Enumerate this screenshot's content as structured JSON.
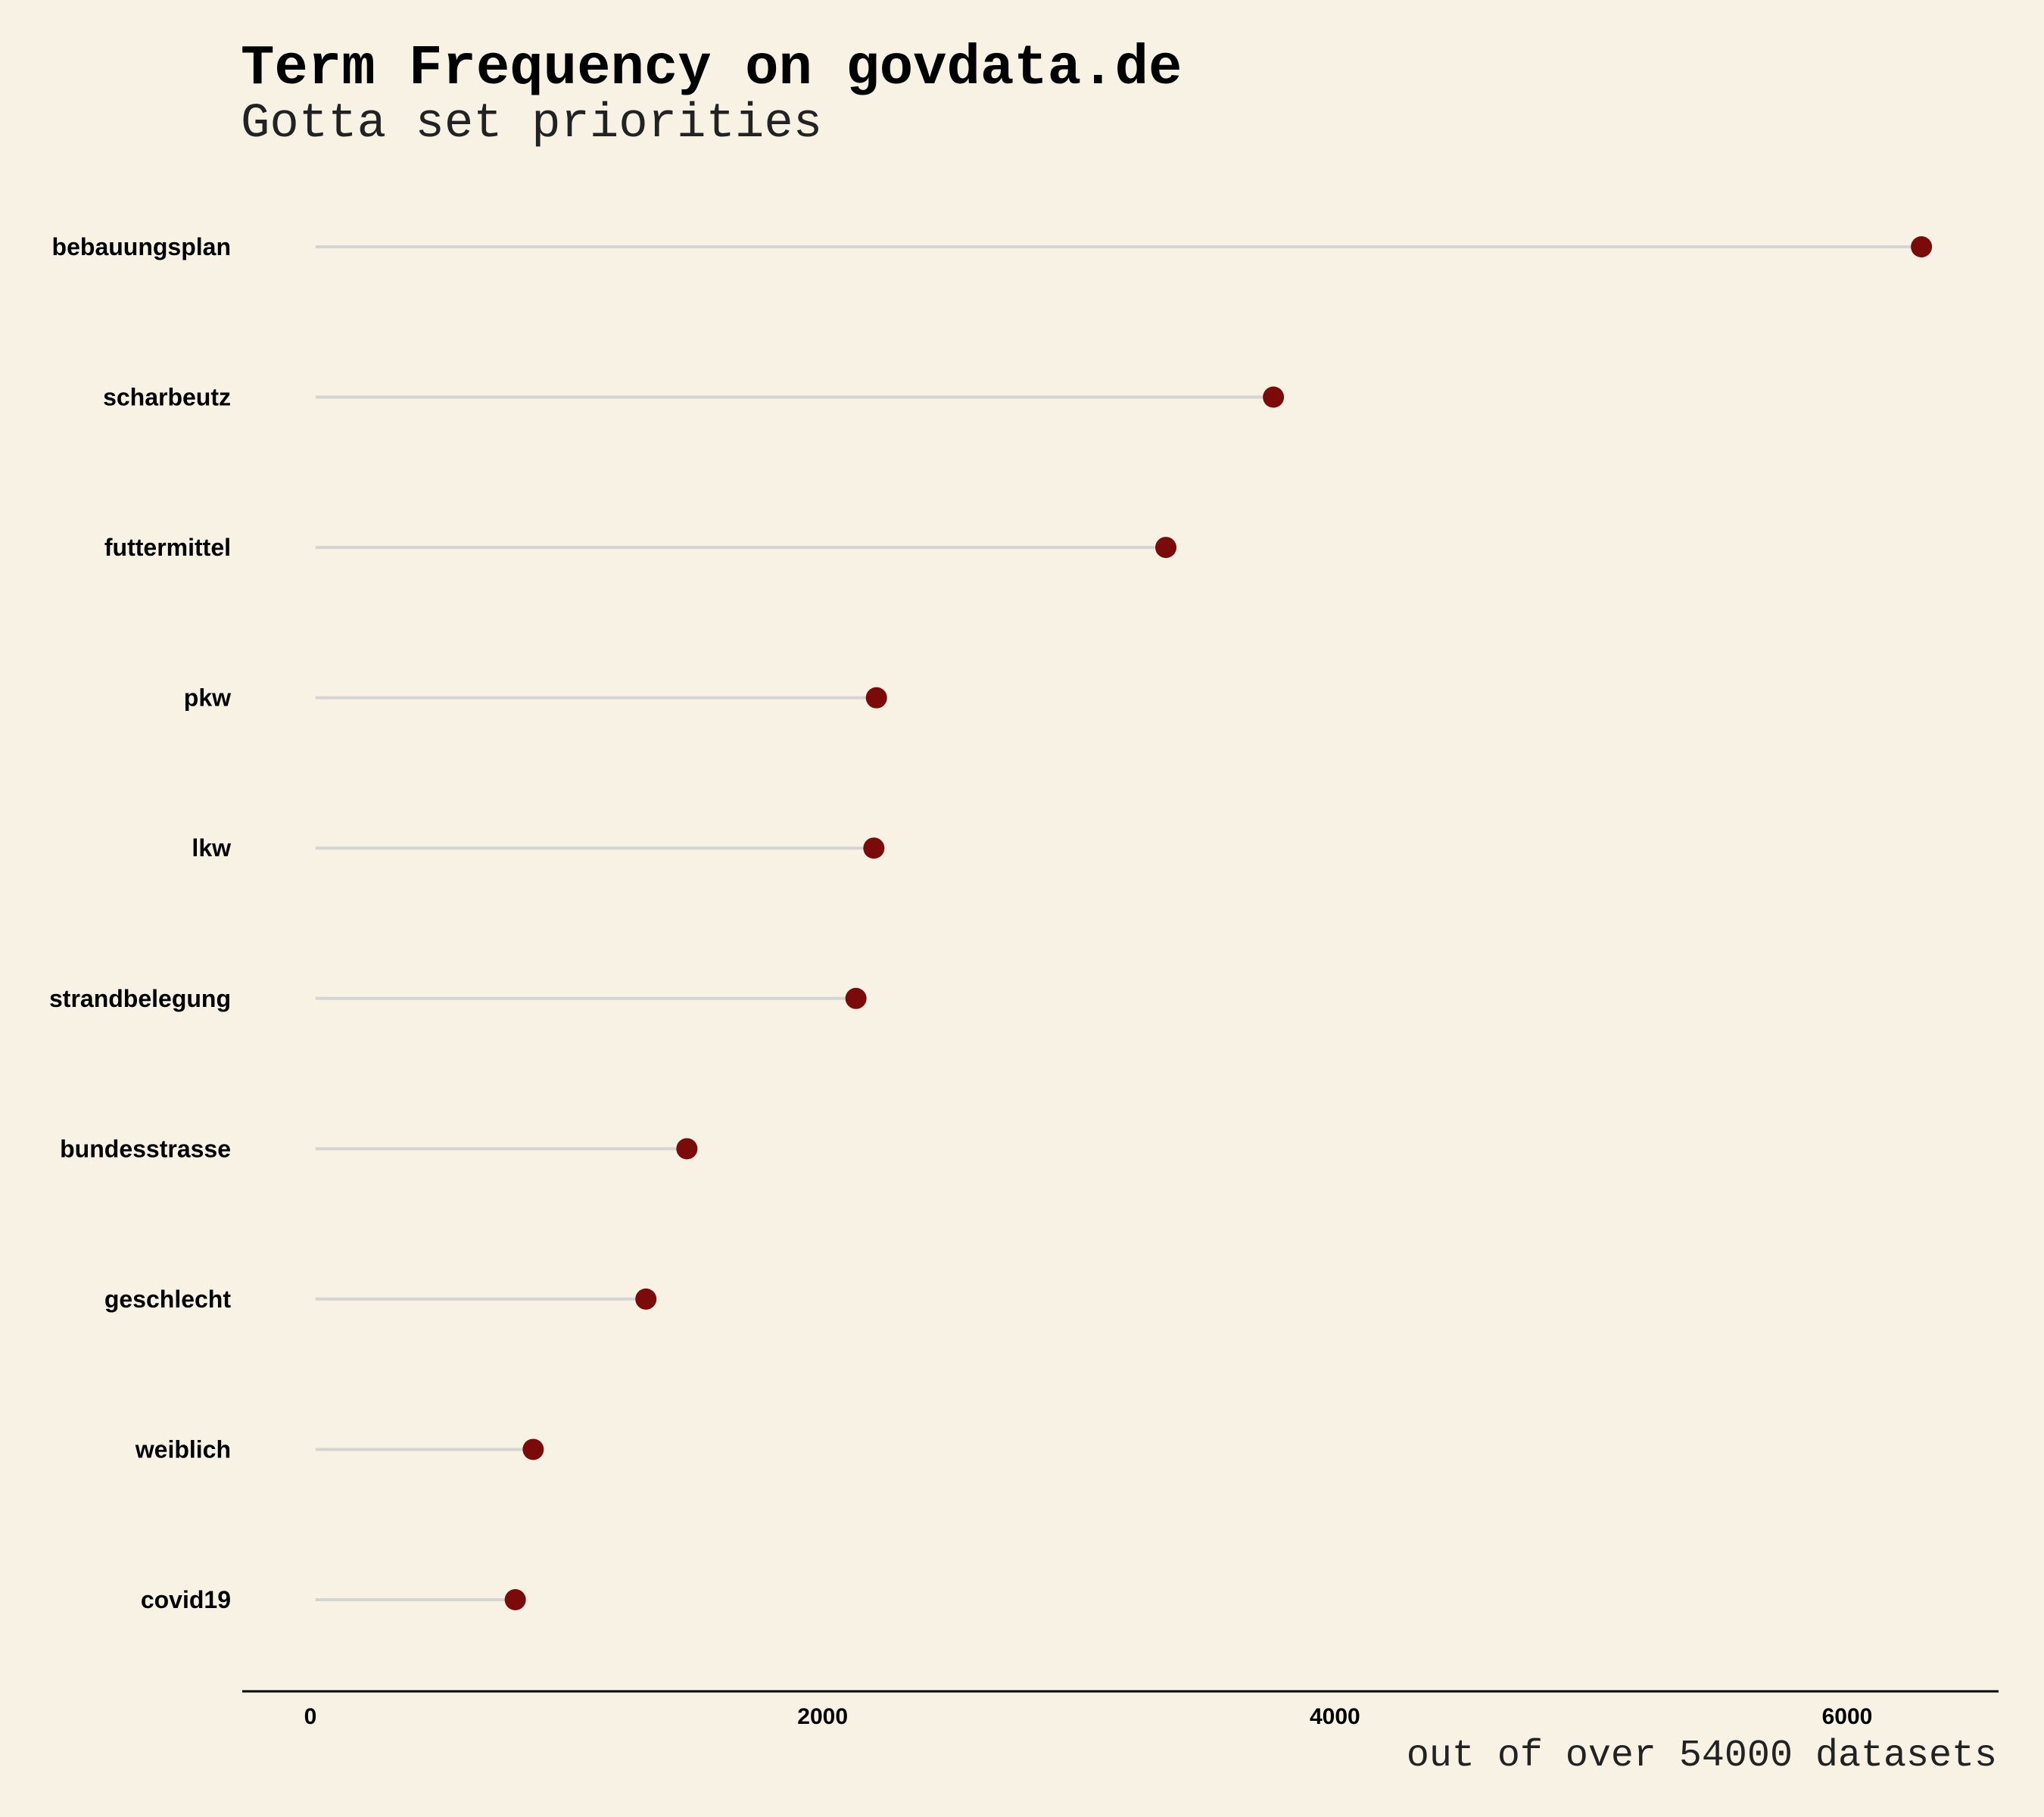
{
  "chart_data": {
    "type": "lollipop",
    "title": "Term Frequency on govdata.de",
    "subtitle": "Gotta set priorities",
    "xlabel": "out of over 54000 datasets",
    "ylabel": "",
    "categories": [
      "bebauungsplan",
      "scharbeutz",
      "futtermittel",
      "pkw",
      "lkw",
      "strandbelegung",
      "bundesstrasse",
      "geschlecht",
      "weiblich",
      "covid19"
    ],
    "values": [
      6290,
      3760,
      3340,
      2210,
      2200,
      2130,
      1470,
      1310,
      870,
      800
    ],
    "x_ticks": [
      "0",
      "2000",
      "4000",
      "6000"
    ],
    "x_tick_values": [
      0,
      2000,
      4000,
      6000
    ],
    "xlim": [
      -270,
      6600
    ],
    "grid": false,
    "colors": {
      "point": "#7b0a0a",
      "stem": "#d4d4d4",
      "background": "#f8f2e5"
    }
  }
}
